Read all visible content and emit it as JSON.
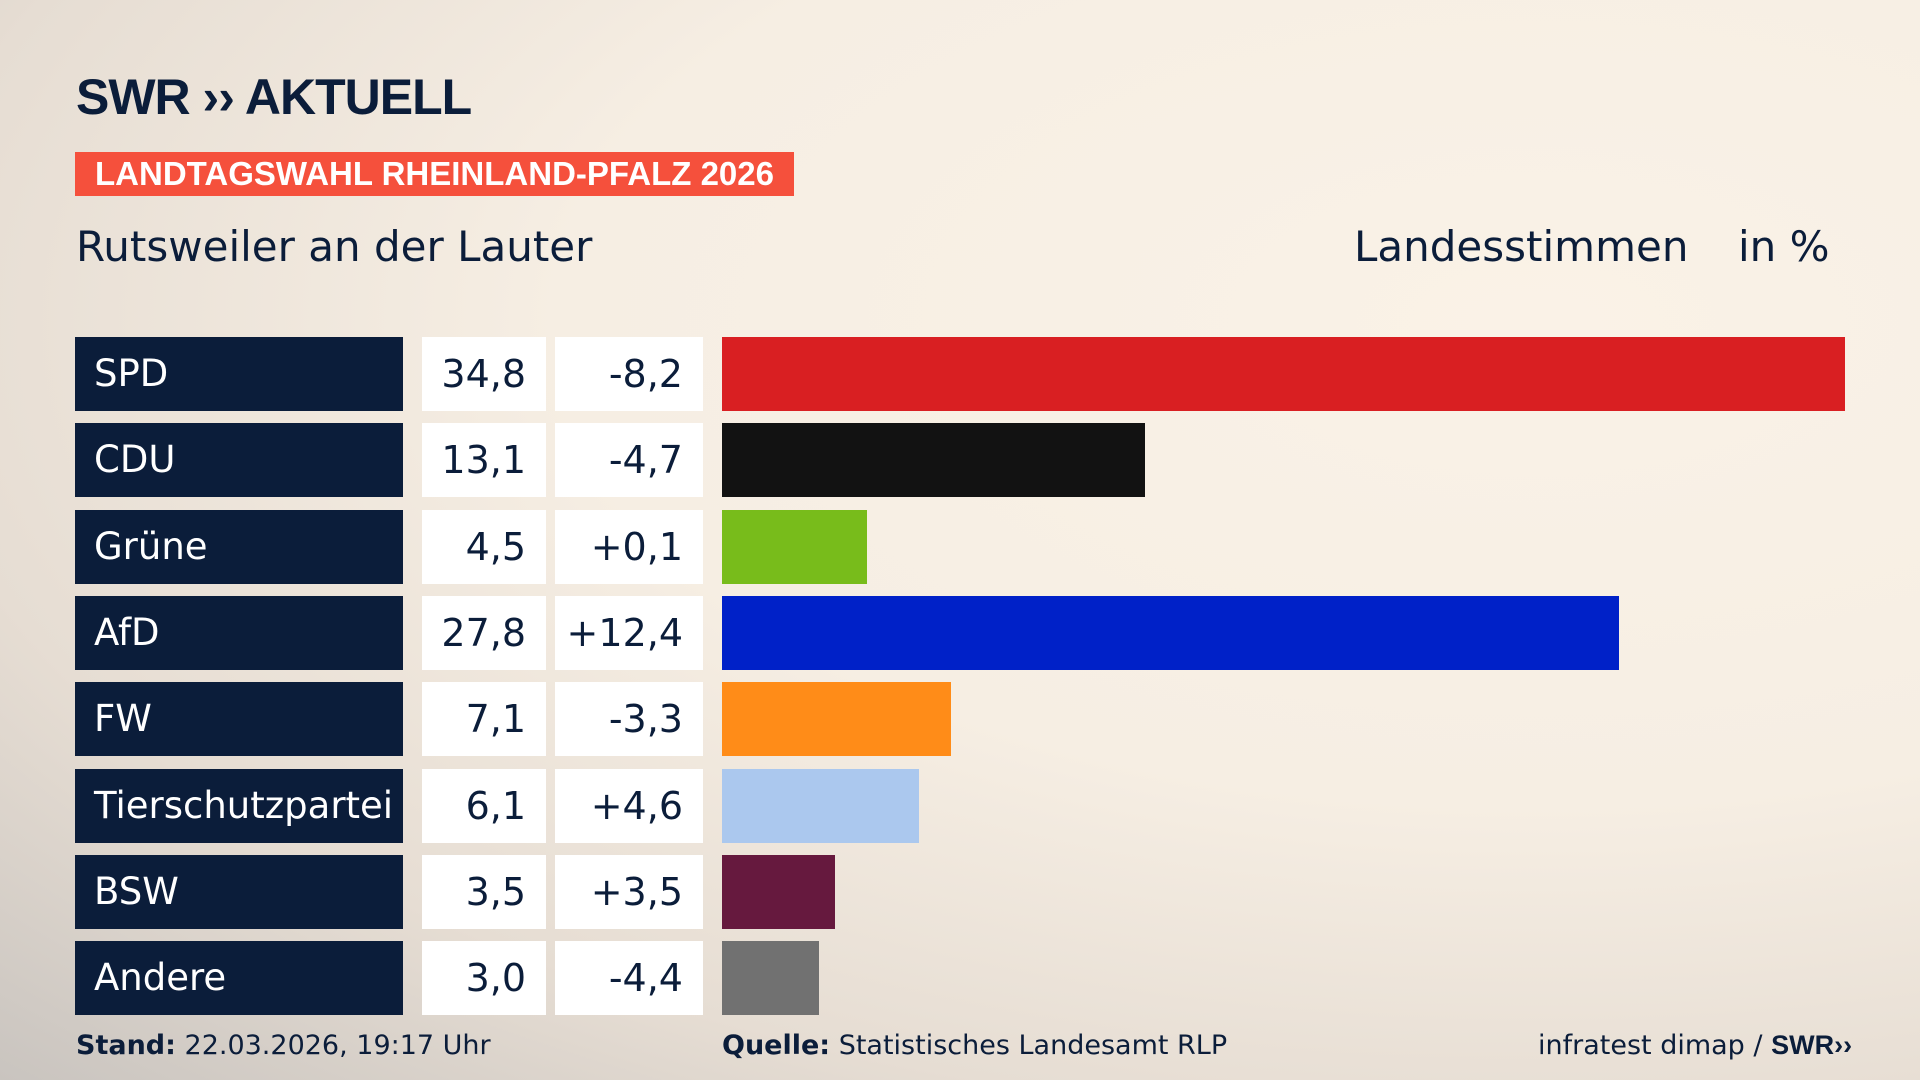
{
  "header": {
    "logo": "SWR ›› AKTUELL",
    "banner": "LANDTAGSWAHL RHEINLAND-PFALZ 2026",
    "subtitle": "Rutsweiler an der Lauter",
    "unit_label": "Landesstimmen",
    "unit_suffix": "in %"
  },
  "chart_data": {
    "type": "bar",
    "orientation": "horizontal",
    "categories": [
      "SPD",
      "CDU",
      "Grüne",
      "AfD",
      "FW",
      "Tierschutzpartei",
      "BSW",
      "Andere"
    ],
    "values": [
      34.8,
      13.1,
      4.5,
      27.8,
      7.1,
      6.1,
      3.5,
      3.0
    ],
    "value_labels": [
      "34,8",
      "13,1",
      "4,5",
      "27,8",
      "7,1",
      "6,1",
      "3,5",
      "3,0"
    ],
    "diff_labels": [
      "-8,2",
      "-4,7",
      "+0,1",
      "+12,4",
      "-3,3",
      "+4,6",
      "+3,5",
      "-4,4"
    ],
    "colors": [
      "#d91f22",
      "#121212",
      "#78bc1b",
      "#0021c8",
      "#ff8c18",
      "#abc8ee",
      "#66193e",
      "#717171"
    ],
    "xlim": [
      0,
      34.8
    ],
    "grid": false
  },
  "footer": {
    "stand_label": "Stand:",
    "stand_value": "22.03.2026, 19:17 Uhr",
    "source_label": "Quelle:",
    "source_value": "Statistisches Landesamt RLP",
    "credit": "infratest dimap / ",
    "credit_logo": "SWR››"
  }
}
